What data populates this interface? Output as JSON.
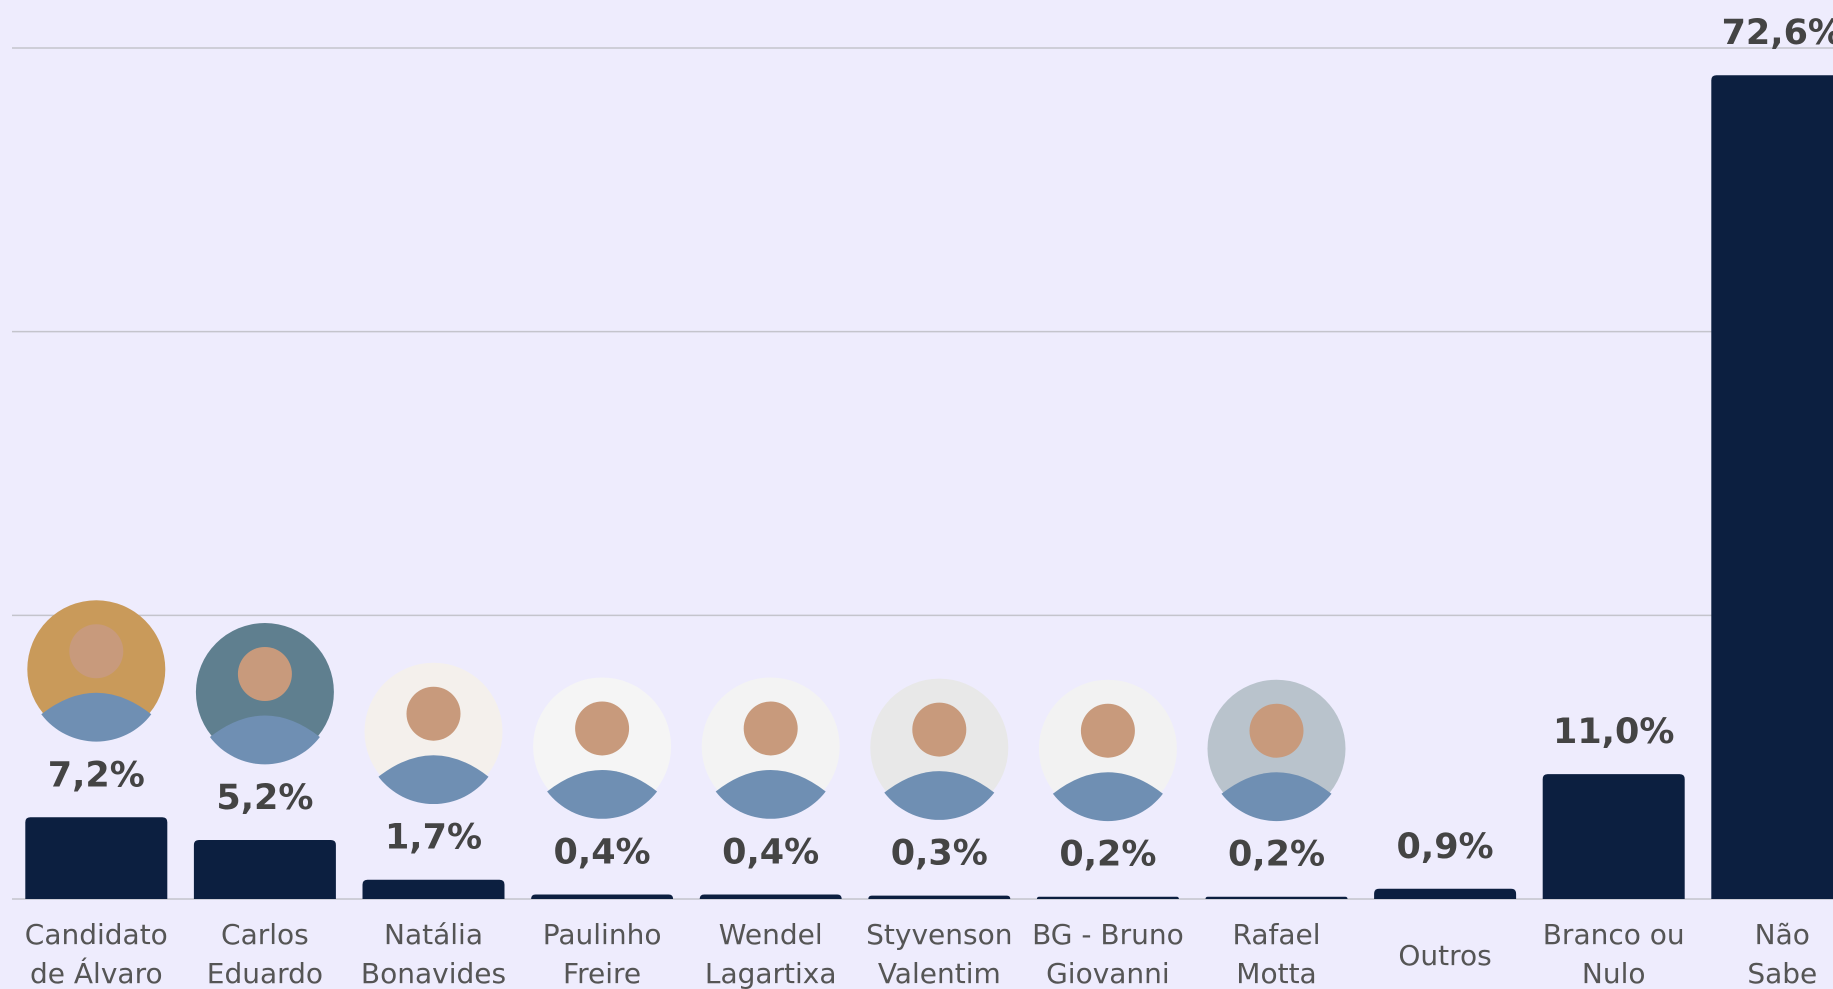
{
  "chart_data": {
    "type": "bar",
    "categories": [
      [
        "Candidato",
        "de Álvaro"
      ],
      [
        "Carlos",
        "Eduardo"
      ],
      [
        "Natália",
        "Bonavides"
      ],
      [
        "Paulinho",
        "Freire"
      ],
      [
        "Wendel",
        "Lagartixa"
      ],
      [
        "Styvenson",
        "Valentim"
      ],
      [
        "BG - Bruno",
        "Giovanni"
      ],
      [
        "Rafael",
        "Motta"
      ],
      [
        "Outros"
      ],
      [
        "Branco ou",
        "Nulo"
      ],
      [
        "Não",
        "Sabe"
      ]
    ],
    "values": [
      7.2,
      5.2,
      1.7,
      0.4,
      0.4,
      0.3,
      0.2,
      0.2,
      0.9,
      11.0,
      72.6
    ],
    "value_labels": [
      "7,2%",
      "5,2%",
      "1,7%",
      "0,4%",
      "0,4%",
      "0,3%",
      "0,2%",
      "0,2%",
      "0,9%",
      "11,0%",
      "72,6%"
    ],
    "color": "#0c1f40",
    "ylim": [
      0,
      75
    ],
    "yticks": [
      0,
      25,
      50,
      75
    ],
    "grid": true
  }
}
